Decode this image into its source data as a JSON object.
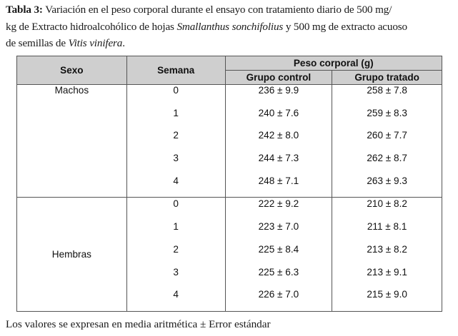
{
  "caption": {
    "label": "Tabla 3:",
    "text_1": " Variación en el peso corporal durante el ensayo con tratamiento diario de 500 mg/",
    "text_2": "kg de Extracto hidroalcohólico de hojas ",
    "species_1": "Smallanthus sonchifolius",
    "text_3": " y 500 mg de extracto acuoso",
    "text_4": "de semillas de ",
    "species_2": "Vitis vinifera",
    "text_5": "."
  },
  "table": {
    "headers": {
      "sexo": "Sexo",
      "semana": "Semana",
      "peso": "Peso corporal (g)",
      "control": "Grupo control",
      "tratado": "Grupo tratado"
    },
    "groups": [
      {
        "sexo": "Machos",
        "rows": [
          {
            "semana": "0",
            "control": "236 ± 9.9",
            "tratado": "258 ± 7.8"
          },
          {
            "semana": "1",
            "control": "240 ± 7.6",
            "tratado": "259 ± 8.3"
          },
          {
            "semana": "2",
            "control": "242 ± 8.0",
            "tratado": "260 ± 7.7"
          },
          {
            "semana": "3",
            "control": "244 ± 7.3",
            "tratado": "262 ± 8.7"
          },
          {
            "semana": "4",
            "control": "248 ± 7.1",
            "tratado": "263 ± 9.3"
          }
        ]
      },
      {
        "sexo": "Hembras",
        "rows": [
          {
            "semana": "0",
            "control": "222 ± 9.2",
            "tratado": "210 ± 8.2"
          },
          {
            "semana": "1",
            "control": "223 ± 7.0",
            "tratado": "211 ± 8.1"
          },
          {
            "semana": "2",
            "control": "225 ± 8.4",
            "tratado": "213 ± 8.2"
          },
          {
            "semana": "3",
            "control": "225 ± 6.3",
            "tratado": "213 ± 9.1"
          },
          {
            "semana": "4",
            "control": "226 ± 7.0",
            "tratado": "215 ± 9.0"
          }
        ]
      }
    ]
  },
  "footnote": "Los valores se expresan en media aritmética ± Error estándar"
}
